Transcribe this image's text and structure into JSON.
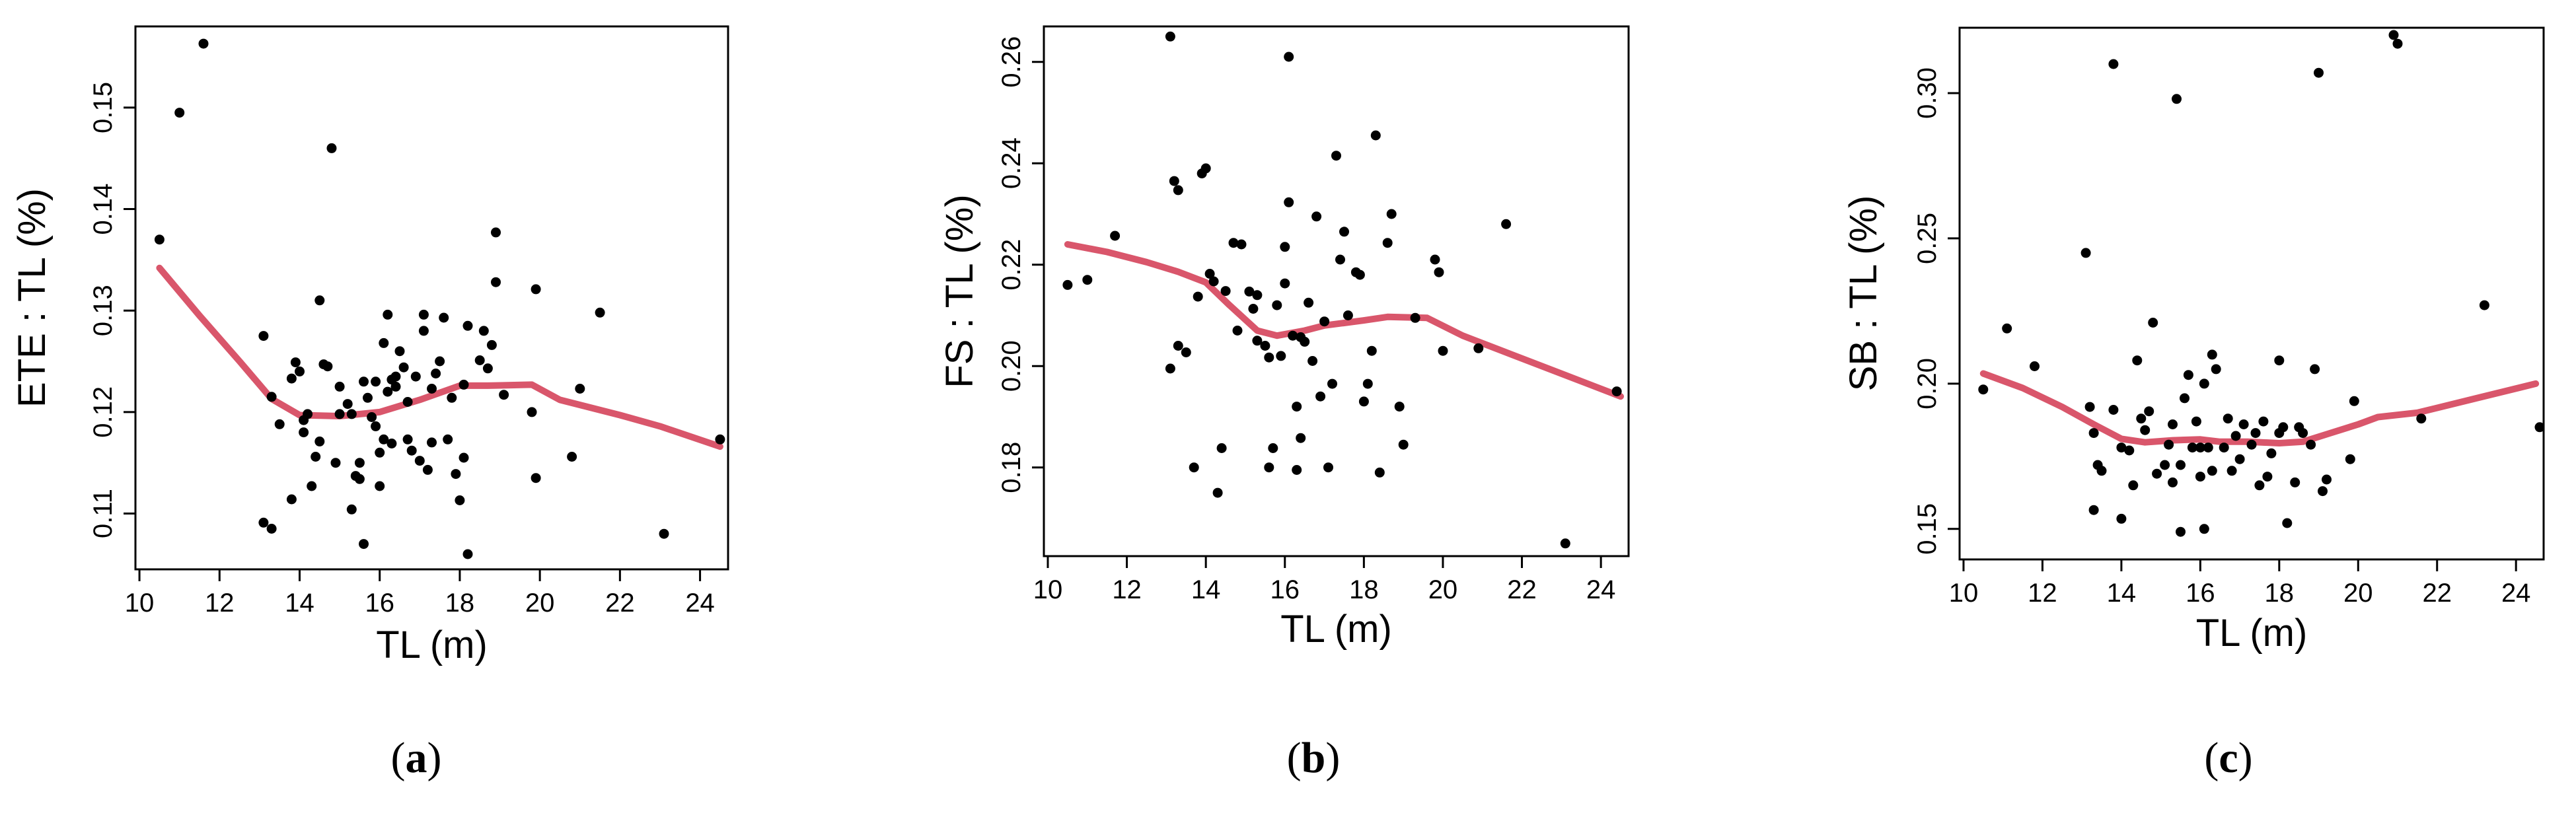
{
  "chart_data": [
    {
      "type": "scatter",
      "panel_label": "a",
      "xlabel": "TL (m)",
      "ylabel": "ETE : TL (%)",
      "xlim": [
        9.9,
        24.7
      ],
      "ylim": [
        0.1045,
        0.158
      ],
      "xticks": [
        "10",
        "12",
        "14",
        "16",
        "18",
        "20",
        "22",
        "24"
      ],
      "yticks": [
        "0.11",
        "0.12",
        "0.13",
        "0.14",
        "0.15"
      ],
      "grid": false,
      "legend": "none",
      "points_color": "#000000",
      "trend_color": "#d9566b",
      "points": [
        [
          10.5,
          0.137
        ],
        [
          11,
          0.1495
        ],
        [
          11.6,
          0.1563
        ],
        [
          13.1,
          0.1275
        ],
        [
          13.1,
          0.1091
        ],
        [
          13.3,
          0.1085
        ],
        [
          13.3,
          0.1215
        ],
        [
          13.5,
          0.1188
        ],
        [
          13.8,
          0.1233
        ],
        [
          13.8,
          0.1114
        ],
        [
          13.9,
          0.1249
        ],
        [
          14.0,
          0.124
        ],
        [
          14.1,
          0.1192
        ],
        [
          14.1,
          0.118
        ],
        [
          14.2,
          0.1198
        ],
        [
          14.3,
          0.1127
        ],
        [
          14.4,
          0.1156
        ],
        [
          14.5,
          0.1171
        ],
        [
          14.5,
          0.131
        ],
        [
          14.6,
          0.1247
        ],
        [
          14.7,
          0.1245
        ],
        [
          14.8,
          0.146
        ],
        [
          14.9,
          0.115
        ],
        [
          15.0,
          0.1198
        ],
        [
          15.0,
          0.1225
        ],
        [
          15.2,
          0.1208
        ],
        [
          15.3,
          0.1198
        ],
        [
          15.3,
          0.1104
        ],
        [
          15.4,
          0.1137
        ],
        [
          15.5,
          0.1134
        ],
        [
          15.5,
          0.115
        ],
        [
          15.6,
          0.107
        ],
        [
          15.6,
          0.123
        ],
        [
          15.7,
          0.1214
        ],
        [
          15.8,
          0.1195
        ],
        [
          15.9,
          0.123
        ],
        [
          15.9,
          0.1186
        ],
        [
          16.0,
          0.116
        ],
        [
          16.0,
          0.1127
        ],
        [
          16.1,
          0.1173
        ],
        [
          16.1,
          0.1268
        ],
        [
          16.2,
          0.122
        ],
        [
          16.2,
          0.1296
        ],
        [
          16.3,
          0.1232
        ],
        [
          16.3,
          0.1169
        ],
        [
          16.4,
          0.1225
        ],
        [
          16.4,
          0.1235
        ],
        [
          16.5,
          0.126
        ],
        [
          16.6,
          0.1244
        ],
        [
          16.7,
          0.121
        ],
        [
          16.7,
          0.1173
        ],
        [
          16.8,
          0.1162
        ],
        [
          16.9,
          0.1235
        ],
        [
          17.0,
          0.1152
        ],
        [
          17.1,
          0.1296
        ],
        [
          17.1,
          0.128
        ],
        [
          17.2,
          0.1143
        ],
        [
          17.3,
          0.117
        ],
        [
          17.3,
          0.1223
        ],
        [
          17.4,
          0.1238
        ],
        [
          17.5,
          0.125
        ],
        [
          17.6,
          0.1293
        ],
        [
          17.7,
          0.1173
        ],
        [
          17.8,
          0.1214
        ],
        [
          17.9,
          0.1139
        ],
        [
          18.0,
          0.1113
        ],
        [
          18.1,
          0.1155
        ],
        [
          18.1,
          0.1227
        ],
        [
          18.2,
          0.106
        ],
        [
          18.2,
          0.1285
        ],
        [
          18.5,
          0.1251
        ],
        [
          18.6,
          0.128
        ],
        [
          18.7,
          0.1243
        ],
        [
          18.8,
          0.1266
        ],
        [
          18.9,
          0.1328
        ],
        [
          18.9,
          0.1377
        ],
        [
          19.1,
          0.1217
        ],
        [
          19.8,
          0.12
        ],
        [
          19.9,
          0.1321
        ],
        [
          19.9,
          0.1135
        ],
        [
          20.8,
          0.1156
        ],
        [
          21.0,
          0.1223
        ],
        [
          21.5,
          0.1298
        ],
        [
          23.1,
          0.108
        ],
        [
          24.5,
          0.1173
        ]
      ],
      "trend": [
        [
          10.5,
          0.1342
        ],
        [
          11.5,
          0.1295
        ],
        [
          12.5,
          0.125
        ],
        [
          13.3,
          0.1213
        ],
        [
          14,
          0.1197
        ],
        [
          15,
          0.1196
        ],
        [
          16,
          0.12
        ],
        [
          17,
          0.1212
        ],
        [
          18,
          0.1226
        ],
        [
          18.7,
          0.1226
        ],
        [
          19.8,
          0.1227
        ],
        [
          20.5,
          0.1212
        ],
        [
          22,
          0.1197
        ],
        [
          23,
          0.1186
        ],
        [
          24.5,
          0.1166
        ]
      ]
    },
    {
      "type": "scatter",
      "panel_label": "b",
      "xlabel": "TL (m)",
      "ylabel": "FS : TL (%)",
      "xlim": [
        9.9,
        24.7
      ],
      "ylim": [
        0.1625,
        0.267
      ],
      "xticks": [
        "10",
        "12",
        "14",
        "16",
        "18",
        "20",
        "22",
        "24"
      ],
      "yticks": [
        "0.18",
        "0.20",
        "0.22",
        "0.24",
        "0.26"
      ],
      "grid": false,
      "legend": "none",
      "points_color": "#000000",
      "trend_color": "#d9566b",
      "points": [
        [
          10.5,
          0.216
        ],
        [
          11.0,
          0.217
        ],
        [
          11.7,
          0.2257
        ],
        [
          13.1,
          0.265
        ],
        [
          13.1,
          0.1995
        ],
        [
          13.2,
          0.2365
        ],
        [
          13.3,
          0.204
        ],
        [
          13.3,
          0.2347
        ],
        [
          13.5,
          0.2027
        ],
        [
          13.7,
          0.18
        ],
        [
          13.8,
          0.2137
        ],
        [
          13.9,
          0.238
        ],
        [
          14.0,
          0.239
        ],
        [
          14.1,
          0.2182
        ],
        [
          14.2,
          0.2167
        ],
        [
          14.3,
          0.175
        ],
        [
          14.4,
          0.1838
        ],
        [
          14.5,
          0.2148
        ],
        [
          14.7,
          0.2243
        ],
        [
          14.8,
          0.207
        ],
        [
          14.9,
          0.224
        ],
        [
          15.1,
          0.2147
        ],
        [
          15.2,
          0.2113
        ],
        [
          15.3,
          0.205
        ],
        [
          15.3,
          0.214
        ],
        [
          15.5,
          0.204
        ],
        [
          15.6,
          0.2017
        ],
        [
          15.6,
          0.18
        ],
        [
          15.7,
          0.1838
        ],
        [
          15.8,
          0.212
        ],
        [
          15.9,
          0.202
        ],
        [
          16.0,
          0.2235
        ],
        [
          16.0,
          0.2163
        ],
        [
          16.1,
          0.261
        ],
        [
          16.1,
          0.2323
        ],
        [
          16.2,
          0.206
        ],
        [
          16.3,
          0.192
        ],
        [
          16.3,
          0.1795
        ],
        [
          16.4,
          0.1858
        ],
        [
          16.4,
          0.2057
        ],
        [
          16.5,
          0.2048
        ],
        [
          16.6,
          0.2125
        ],
        [
          16.7,
          0.201
        ],
        [
          16.8,
          0.2295
        ],
        [
          16.9,
          0.194
        ],
        [
          17.0,
          0.2088
        ],
        [
          17.1,
          0.18
        ],
        [
          17.2,
          0.1965
        ],
        [
          17.3,
          0.2415
        ],
        [
          17.4,
          0.221
        ],
        [
          17.5,
          0.2265
        ],
        [
          17.6,
          0.21
        ],
        [
          17.8,
          0.2185
        ],
        [
          17.9,
          0.218
        ],
        [
          18.0,
          0.193
        ],
        [
          18.1,
          0.1965
        ],
        [
          18.2,
          0.203
        ],
        [
          18.3,
          0.2455
        ],
        [
          18.4,
          0.179
        ],
        [
          18.6,
          0.2243
        ],
        [
          18.7,
          0.23
        ],
        [
          18.9,
          0.192
        ],
        [
          19.0,
          0.1845
        ],
        [
          19.3,
          0.2095
        ],
        [
          19.8,
          0.221
        ],
        [
          19.9,
          0.2185
        ],
        [
          20.0,
          0.203
        ],
        [
          20.9,
          0.2035
        ],
        [
          21.6,
          0.228
        ],
        [
          23.1,
          0.165
        ],
        [
          24.4,
          0.195
        ]
      ],
      "trend": [
        [
          10.5,
          0.224
        ],
        [
          11.5,
          0.2225
        ],
        [
          12.5,
          0.2205
        ],
        [
          13.3,
          0.2186
        ],
        [
          14,
          0.2165
        ],
        [
          14.6,
          0.212
        ],
        [
          15.3,
          0.207
        ],
        [
          15.8,
          0.206
        ],
        [
          16.5,
          0.207
        ],
        [
          17,
          0.208
        ],
        [
          18,
          0.209
        ],
        [
          18.6,
          0.2097
        ],
        [
          19.6,
          0.2095
        ],
        [
          20.5,
          0.206
        ],
        [
          21.5,
          0.203
        ],
        [
          23,
          0.1985
        ],
        [
          24.5,
          0.194
        ]
      ]
    },
    {
      "type": "scatter",
      "panel_label": "c",
      "xlabel": "TL (m)",
      "ylabel": "SB : TL (%)",
      "xlim": [
        9.9,
        24.7
      ],
      "ylim": [
        0.1395,
        0.3225
      ],
      "xticks": [
        "10",
        "12",
        "14",
        "16",
        "18",
        "20",
        "22",
        "24"
      ],
      "yticks": [
        "0.15",
        "0.20",
        "0.25",
        "0.30"
      ],
      "grid": false,
      "legend": "none",
      "points_color": "#000000",
      "trend_color": "#d9566b",
      "points": [
        [
          10.5,
          0.198
        ],
        [
          11.1,
          0.219
        ],
        [
          11.8,
          0.206
        ],
        [
          13.1,
          0.245
        ],
        [
          13.2,
          0.192
        ],
        [
          13.3,
          0.183
        ],
        [
          13.3,
          0.1565
        ],
        [
          13.4,
          0.172
        ],
        [
          13.5,
          0.17
        ],
        [
          13.8,
          0.31
        ],
        [
          13.8,
          0.191
        ],
        [
          14.0,
          0.178
        ],
        [
          14.0,
          0.1535
        ],
        [
          14.2,
          0.177
        ],
        [
          14.3,
          0.165
        ],
        [
          14.4,
          0.208
        ],
        [
          14.5,
          0.188
        ],
        [
          14.6,
          0.184
        ],
        [
          14.7,
          0.1905
        ],
        [
          14.8,
          0.221
        ],
        [
          14.9,
          0.169
        ],
        [
          15.1,
          0.172
        ],
        [
          15.2,
          0.179
        ],
        [
          15.3,
          0.186
        ],
        [
          15.3,
          0.166
        ],
        [
          15.4,
          0.298
        ],
        [
          15.5,
          0.149
        ],
        [
          15.5,
          0.172
        ],
        [
          15.6,
          0.195
        ],
        [
          15.7,
          0.203
        ],
        [
          15.8,
          0.178
        ],
        [
          15.9,
          0.187
        ],
        [
          16.0,
          0.178
        ],
        [
          16.0,
          0.168
        ],
        [
          16.1,
          0.15
        ],
        [
          16.1,
          0.2
        ],
        [
          16.2,
          0.178
        ],
        [
          16.3,
          0.21
        ],
        [
          16.3,
          0.17
        ],
        [
          16.4,
          0.205
        ],
        [
          16.6,
          0.178
        ],
        [
          16.7,
          0.188
        ],
        [
          16.8,
          0.17
        ],
        [
          16.9,
          0.182
        ],
        [
          17.0,
          0.174
        ],
        [
          17.1,
          0.186
        ],
        [
          17.3,
          0.179
        ],
        [
          17.4,
          0.183
        ],
        [
          17.5,
          0.165
        ],
        [
          17.6,
          0.187
        ],
        [
          17.7,
          0.168
        ],
        [
          17.8,
          0.176
        ],
        [
          18.0,
          0.183
        ],
        [
          18.0,
          0.208
        ],
        [
          18.1,
          0.185
        ],
        [
          18.2,
          0.152
        ],
        [
          18.4,
          0.166
        ],
        [
          18.5,
          0.185
        ],
        [
          18.6,
          0.183
        ],
        [
          18.8,
          0.179
        ],
        [
          18.9,
          0.205
        ],
        [
          19.0,
          0.307
        ],
        [
          19.1,
          0.163
        ],
        [
          19.2,
          0.167
        ],
        [
          19.8,
          0.174
        ],
        [
          19.9,
          0.194
        ],
        [
          20.9,
          0.32
        ],
        [
          21.0,
          0.317
        ],
        [
          21.6,
          0.188
        ],
        [
          23.2,
          0.227
        ],
        [
          24.6,
          0.185
        ]
      ],
      "trend": [
        [
          10.5,
          0.2035
        ],
        [
          11.5,
          0.1985
        ],
        [
          12.5,
          0.192
        ],
        [
          13.3,
          0.186
        ],
        [
          14,
          0.181
        ],
        [
          14.6,
          0.1798
        ],
        [
          15.3,
          0.1805
        ],
        [
          16,
          0.1808
        ],
        [
          16.5,
          0.18
        ],
        [
          17.2,
          0.18
        ],
        [
          18,
          0.1795
        ],
        [
          18.6,
          0.18
        ],
        [
          19.3,
          0.183
        ],
        [
          20,
          0.186
        ],
        [
          20.5,
          0.1885
        ],
        [
          21.5,
          0.19
        ],
        [
          23,
          0.195
        ],
        [
          24.5,
          0.2
        ]
      ]
    }
  ]
}
